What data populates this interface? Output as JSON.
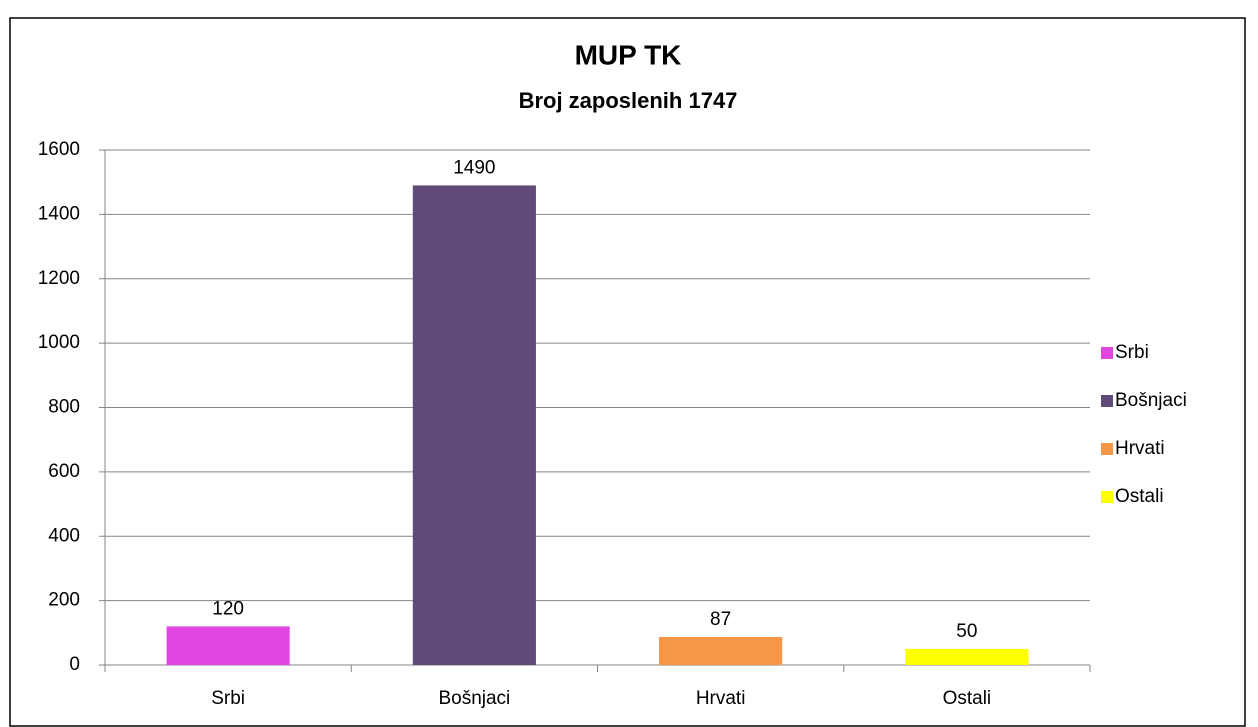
{
  "chart_data": {
    "type": "bar",
    "title": "MUP TK",
    "subtitle": "Broj zaposlenih 1747",
    "categories": [
      "Srbi",
      "Bošnjaci",
      "Hrvati",
      "Ostali"
    ],
    "values": [
      120,
      1490,
      87,
      50
    ],
    "colors": [
      "#e246e2",
      "#5f4a7a",
      "#f79646",
      "#ffff00"
    ],
    "ylim": [
      0,
      1600
    ],
    "yticks": [
      0,
      200,
      400,
      600,
      800,
      1000,
      1200,
      1400,
      1600
    ],
    "grid": true,
    "legend": "right"
  }
}
